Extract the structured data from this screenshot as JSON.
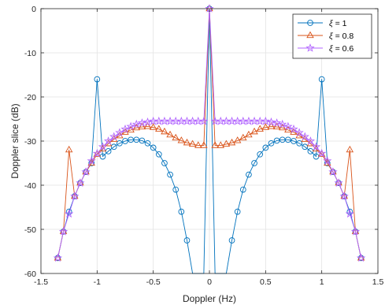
{
  "chart_data": {
    "type": "line",
    "xlabel": "Doppler (Hz)",
    "ylabel": "Doppler slice (dB)",
    "xlim": [
      -1.5,
      1.5
    ],
    "ylim": [
      -60,
      0
    ],
    "xticks": [
      -1.5,
      -1,
      -0.5,
      0,
      0.5,
      1,
      1.5
    ],
    "xtick_labels": [
      "-1.5",
      "-1",
      "-0.5",
      "0",
      "0.5",
      "1",
      "1.5"
    ],
    "yticks": [
      -60,
      -50,
      -40,
      -30,
      -20,
      -10,
      0
    ],
    "ytick_labels": [
      "-60",
      "-50",
      "-40",
      "-30",
      "-20",
      "-10",
      "0"
    ],
    "grid": true,
    "legend_position": "top-right",
    "legend": {
      "xi": "ξ",
      "entries": [
        " = 1",
        " = 0.8",
        " = 0.6"
      ]
    },
    "series": [
      {
        "name": "ξ = 1",
        "color": "#0072BD",
        "marker": "circle",
        "x": [
          -1.35,
          -1.3,
          -1.25,
          -1.2,
          -1.15,
          -1.1,
          -1.05,
          -1,
          -0.95,
          -0.9,
          -0.85,
          -0.8,
          -0.75,
          -0.7,
          -0.65,
          -0.6,
          -0.55,
          -0.5,
          -0.45,
          -0.4,
          -0.35,
          -0.3,
          -0.25,
          -0.2,
          -0.15,
          -0.1,
          -0.05,
          0,
          0.05,
          0.1,
          0.15,
          0.2,
          0.25,
          0.3,
          0.35,
          0.4,
          0.45,
          0.5,
          0.55,
          0.6,
          0.65,
          0.7,
          0.75,
          0.8,
          0.85,
          0.9,
          0.95,
          1,
          1.05,
          1.1,
          1.15,
          1.2,
          1.25,
          1.3,
          1.35
        ],
        "y": [
          -56.5,
          -50.5,
          -46,
          -42.5,
          -39.5,
          -37,
          -35,
          -16,
          -33.5,
          -32.3,
          -31.3,
          -30.5,
          -30,
          -29.7,
          -29.7,
          -29.9,
          -30.5,
          -31.5,
          -33,
          -35,
          -37.6,
          -41,
          -46,
          -52.5,
          -60,
          -60,
          -60,
          0,
          -60,
          -60,
          -60,
          -52.5,
          -46,
          -41,
          -37.6,
          -35,
          -33,
          -31.5,
          -30.5,
          -29.9,
          -29.7,
          -29.7,
          -30,
          -30.5,
          -31.3,
          -32.3,
          -33.5,
          -16,
          -35,
          -37,
          -39.5,
          -42.5,
          -46,
          -50.5,
          -56.5
        ]
      },
      {
        "name": "ξ = 0.8",
        "color": "#D95319",
        "marker": "triangle",
        "x": [
          -1.35,
          -1.3,
          -1.25,
          -1.2,
          -1.15,
          -1.1,
          -1.05,
          -1,
          -0.95,
          -0.9,
          -0.85,
          -0.8,
          -0.75,
          -0.7,
          -0.65,
          -0.6,
          -0.55,
          -0.5,
          -0.45,
          -0.4,
          -0.35,
          -0.3,
          -0.25,
          -0.2,
          -0.15,
          -0.1,
          -0.05,
          0,
          0.05,
          0.1,
          0.15,
          0.2,
          0.25,
          0.3,
          0.35,
          0.4,
          0.45,
          0.5,
          0.55,
          0.6,
          0.65,
          0.7,
          0.75,
          0.8,
          0.85,
          0.9,
          0.95,
          1,
          1.05,
          1.1,
          1.15,
          1.2,
          1.25,
          1.3,
          1.35
        ],
        "y": [
          -56.5,
          -50.5,
          -32,
          -42.5,
          -39.5,
          -37,
          -35,
          -33,
          -31.8,
          -30.6,
          -29.6,
          -28.8,
          -28,
          -27.5,
          -27,
          -26.8,
          -26.7,
          -26.9,
          -27.3,
          -27.9,
          -28.6,
          -29.3,
          -29.9,
          -30.4,
          -30.7,
          -31,
          -31,
          0,
          -31,
          -31,
          -30.7,
          -30.4,
          -29.9,
          -29.3,
          -28.6,
          -27.9,
          -27.3,
          -26.9,
          -26.7,
          -26.8,
          -27,
          -27.5,
          -28,
          -28.8,
          -29.6,
          -30.6,
          -31.8,
          -33,
          -35,
          -37,
          -39.5,
          -42.5,
          -32,
          -50.5,
          -56.5
        ]
      },
      {
        "name": "ξ = 0.6",
        "color": "#B266FF",
        "marker": "star",
        "x": [
          -1.35,
          -1.3,
          -1.25,
          -1.2,
          -1.15,
          -1.1,
          -1.05,
          -1,
          -0.95,
          -0.9,
          -0.85,
          -0.8,
          -0.75,
          -0.7,
          -0.65,
          -0.6,
          -0.55,
          -0.5,
          -0.45,
          -0.4,
          -0.35,
          -0.3,
          -0.25,
          -0.2,
          -0.15,
          -0.1,
          -0.05,
          0,
          0.05,
          0.1,
          0.15,
          0.2,
          0.25,
          0.3,
          0.35,
          0.4,
          0.45,
          0.5,
          0.55,
          0.6,
          0.65,
          0.7,
          0.75,
          0.8,
          0.85,
          0.9,
          0.95,
          1,
          1.05,
          1.1,
          1.15,
          1.2,
          1.25,
          1.3,
          1.35
        ],
        "y": [
          -56.5,
          -50.5,
          -46.5,
          -42.5,
          -39.5,
          -37,
          -34.5,
          -32.8,
          -31.3,
          -30,
          -29,
          -28.1,
          -27.3,
          -26.7,
          -26.2,
          -25.9,
          -25.7,
          -25.5,
          -25.5,
          -25.5,
          -25.5,
          -25.5,
          -25.5,
          -25.5,
          -25.5,
          -25.5,
          -25.5,
          0,
          -25.5,
          -25.5,
          -25.5,
          -25.5,
          -25.5,
          -25.5,
          -25.5,
          -25.5,
          -25.5,
          -25.5,
          -25.7,
          -25.9,
          -26.2,
          -26.7,
          -27.3,
          -28.1,
          -29,
          -30,
          -31.3,
          -32.8,
          -34.5,
          -37,
          -39.5,
          -42.5,
          -46.5,
          -50.5,
          -56.5
        ]
      }
    ]
  }
}
